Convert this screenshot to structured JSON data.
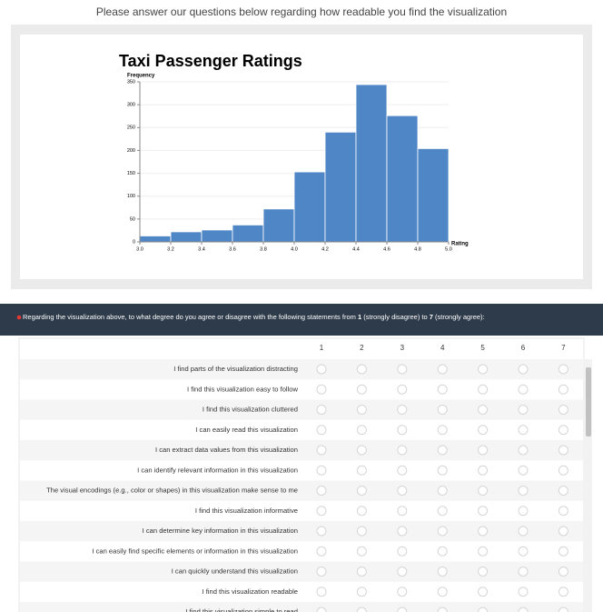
{
  "header": {
    "title": "Please answer our questions below regarding how readable you find the visualization"
  },
  "chart_data": {
    "type": "histogram",
    "title": "Taxi Passenger Ratings",
    "y_label": "Frequency",
    "x_label": "Rating",
    "bins": [
      3.0,
      3.2,
      3.4,
      3.6,
      3.8,
      4.0,
      4.2,
      4.4,
      4.6,
      4.8,
      5.0
    ],
    "counts": [
      13,
      22,
      26,
      37,
      72,
      153,
      240,
      344,
      276,
      204
    ],
    "color": "#4f86c6",
    "xlim": [
      3,
      5
    ],
    "xticks": [
      {
        "value": 3,
        "label": "3.0"
      },
      3.2,
      3.4,
      3.6,
      3.8,
      {
        "value": 4,
        "label": "4.0"
      },
      4.2,
      4.4,
      4.6,
      4.8,
      {
        "value": 5,
        "label": "5.0"
      }
    ],
    "ylim": [
      0,
      350
    ],
    "yticks": [
      0,
      50,
      100,
      150,
      200,
      250,
      300,
      350
    ],
    "grid": true
  },
  "question": {
    "parts": [
      "Regarding the visualization above, to what degree do you agree or disagree with the following statements from ",
      "1",
      " (strongly disagree) to ",
      "7",
      " (strongly agree):"
    ]
  },
  "table": {
    "columns": [
      1,
      2,
      3,
      4,
      5,
      6,
      7
    ],
    "rows": [
      "I find parts of the visualization distracting",
      "I find this visualization easy to follow",
      "I find this visualization cluttered",
      "I can easily read this visualization",
      "I can extract data values from this visualization",
      "I can identify relevant information in this visualization",
      "The visual encodings (e.g., color or shapes) in this visualization make sense to me",
      "I find this visualization informative",
      "I can determine key information in this visualization",
      "I can easily find specific elements or information in this visualization",
      "I can quickly understand this visualization",
      "I find this visualization readable",
      "I find this visualization simple to read"
    ]
  }
}
